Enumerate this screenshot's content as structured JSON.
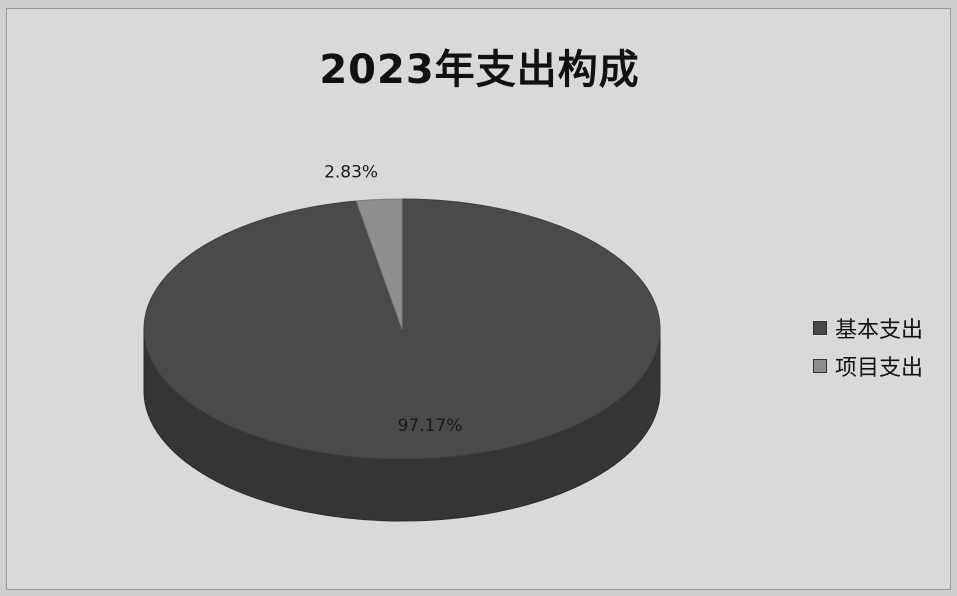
{
  "chart_data": {
    "type": "pie",
    "title": "2023年支出构成",
    "slices": [
      {
        "name": "基本支出",
        "value": 97.17,
        "label": "97.17%",
        "color": "#4a4a4a"
      },
      {
        "name": "项目支出",
        "value": 2.83,
        "label": "2.83%",
        "color": "#8e8e8e"
      }
    ],
    "legend_position": "right",
    "style": "3d"
  }
}
